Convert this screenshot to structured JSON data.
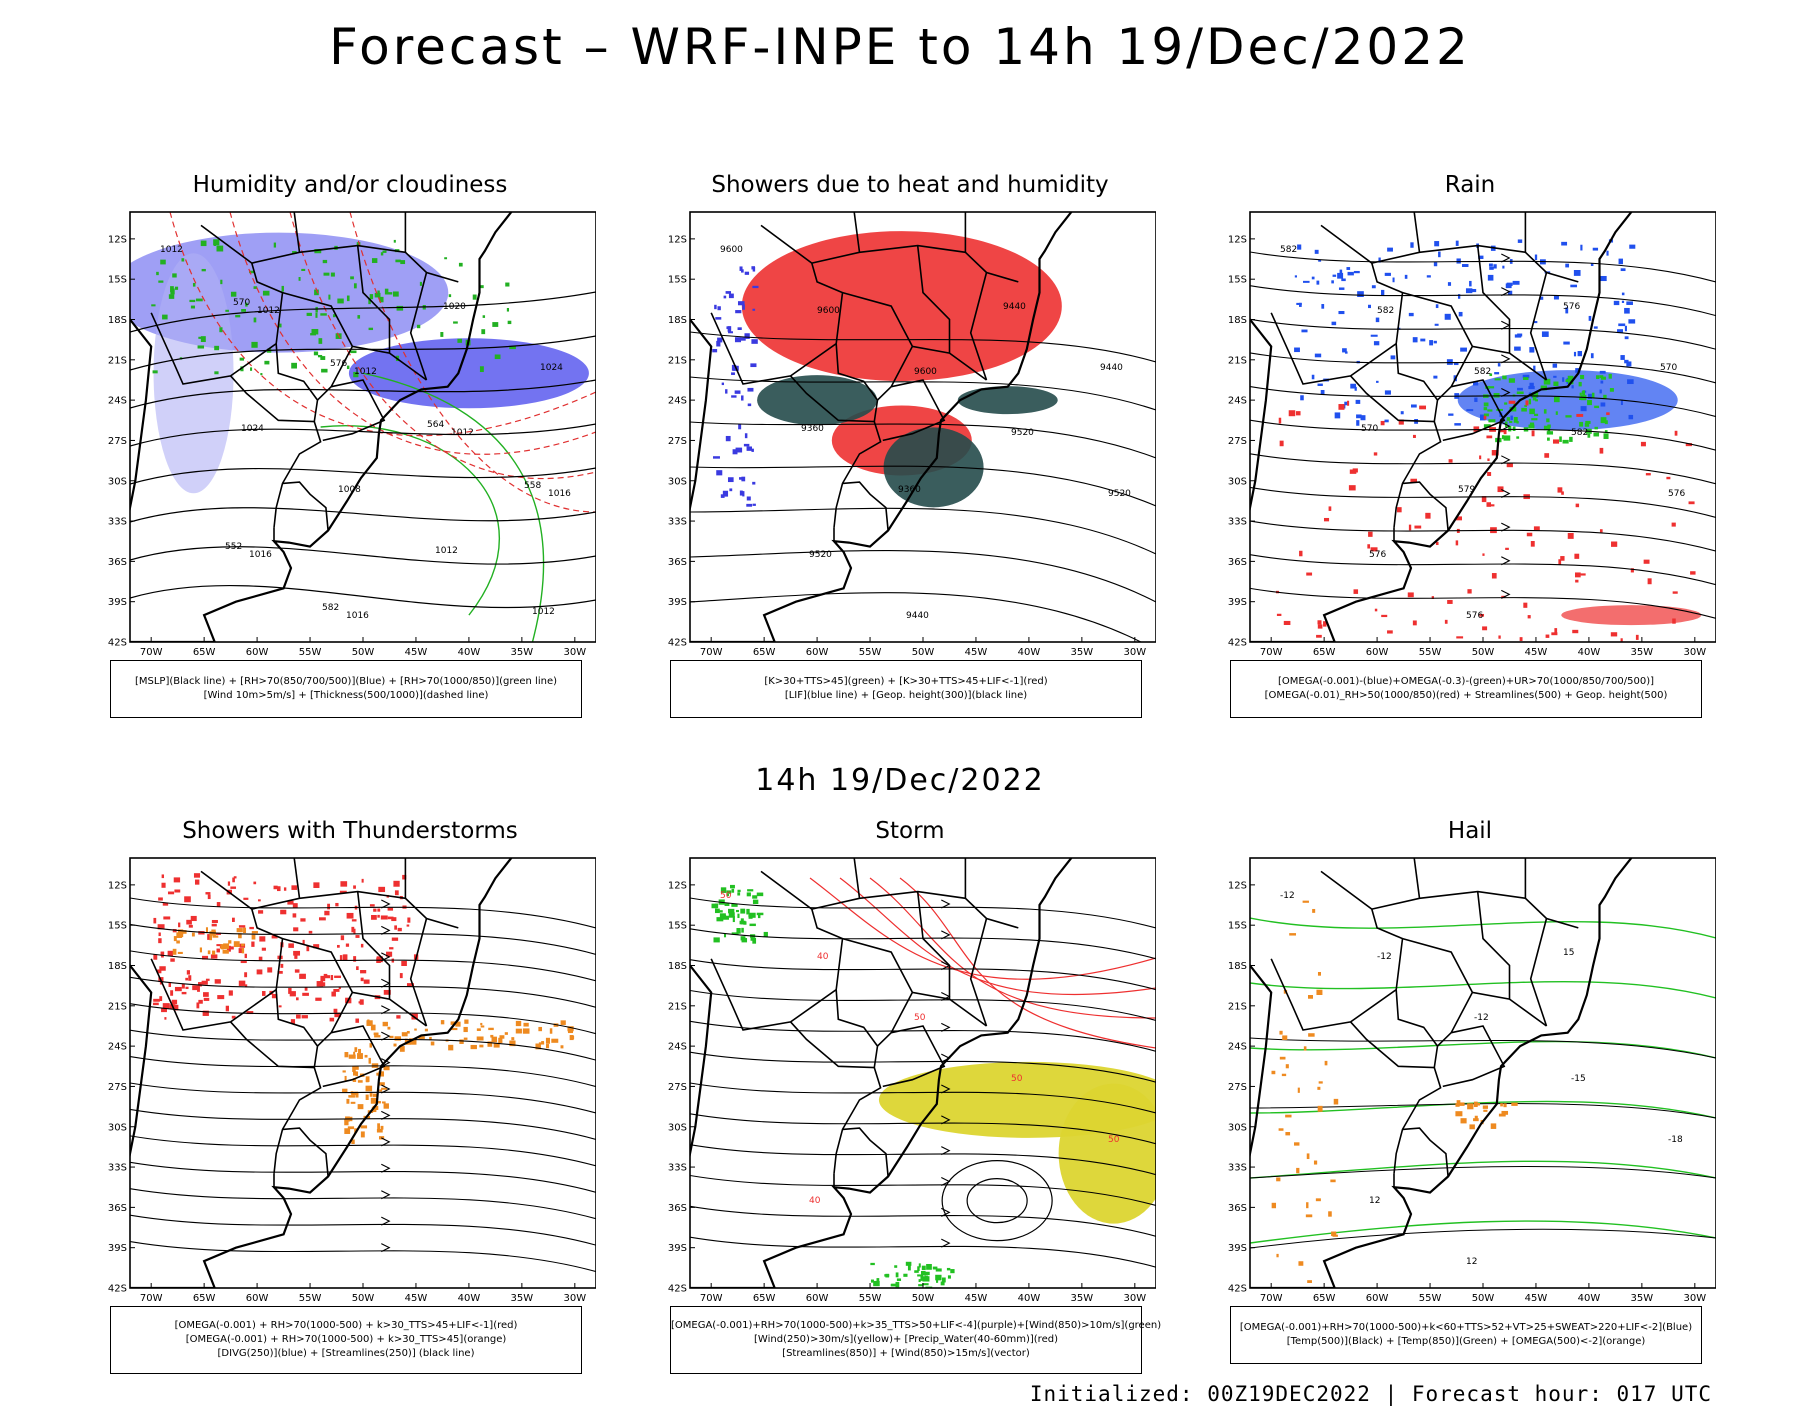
{
  "title": "Forecast – WRF-INPE to 14h 19/Dec/2022",
  "mid_title": "14h 19/Dec/2022",
  "footer": "Initialized: 00Z19DEC2022 | Forecast hour: 017 UTC",
  "axes": {
    "lat_labels": [
      "12S",
      "15S",
      "18S",
      "21S",
      "24S",
      "27S",
      "30S",
      "33S",
      "36S",
      "39S",
      "42S"
    ],
    "lon_labels": [
      "70W",
      "65W",
      "60W",
      "55W",
      "50W",
      "45W",
      "40W",
      "35W",
      "30W"
    ]
  },
  "panels": [
    {
      "title": "Humidity and/or cloudiness",
      "legend": [
        "[MSLP](Black line) + [RH>70(850/700/500)](Blue) + [RH>70(1000/850)](green line)",
        "[Wind 10m>5m/s] + [Thickness(500/1000)](dashed line)"
      ],
      "contour_labels": [
        "1012",
        "1012",
        "1012",
        "1012",
        "1016",
        "1016",
        "1016",
        "1020",
        "1024",
        "1024",
        "1008",
        "1012",
        "1012",
        "570",
        "576",
        "564",
        "558",
        "552",
        "582"
      ]
    },
    {
      "title": "Showers due to heat and humidity",
      "legend": [
        "[K>30+TTS>45](green) + [K>30+TTS>45+LIF<-1](red)",
        "[LIF](blue line) + [Geop. height(300)](black line)"
      ],
      "contour_labels": [
        "9600",
        "9600",
        "9600",
        "9520",
        "9520",
        "9520",
        "9440",
        "9440",
        "9440",
        "9360",
        "9360"
      ]
    },
    {
      "title": "Rain",
      "legend": [
        "[OMEGA(-0.001)-(blue)+OMEGA(-0.3)-(green)+UR>70(1000/850/700/500)]",
        "[OMEGA(-0.01)_RH>50(1000/850)(red) + Streamlines(500) + Geop. height(500)"
      ],
      "contour_labels": [
        "582",
        "582",
        "582",
        "582",
        "576",
        "576",
        "576",
        "576",
        "570",
        "570",
        "579"
      ]
    },
    {
      "title": "Showers with Thunderstorms",
      "legend": [
        "[OMEGA(-0.001) + RH>70(1000-500) + k>30_TTS>45+LIF<-1](red)",
        "[OMEGA(-0.001) + RH>70(1000-500) + k>30_TTS>45](orange)",
        "[DIVG(250)](blue) + [Streamlines(250)] (black line)"
      ],
      "contour_labels": []
    },
    {
      "title": "Storm",
      "legend": [
        "[OMEGA(-0.001)+RH>70(1000-500)+k>35_TTS>50+LIF<-4](purple)+[Wind(850)>10m/s](green)",
        "[Wind(250)>30m/s](yellow)+ [Precip_Water(40-60mm)](red)",
        "[Streamlines(850)] + [Wind(850)>15m/s](vector)"
      ],
      "contour_labels": [
        "50",
        "40",
        "50",
        "50",
        "50",
        "40"
      ]
    },
    {
      "title": "Hail",
      "legend": [
        "[OMEGA(-0.001)+RH>70(1000-500)+k<60+TTS>52+VT>25+SWEAT>220+LIF<-2](Blue)",
        "[Temp(500)](Black) + [Temp(850)](Green) + [OMEGA(500)<-2](orange)"
      ],
      "contour_labels": [
        "-12",
        "-12",
        "-12",
        "-15",
        "-18",
        "12",
        "12",
        "15"
      ]
    }
  ]
}
